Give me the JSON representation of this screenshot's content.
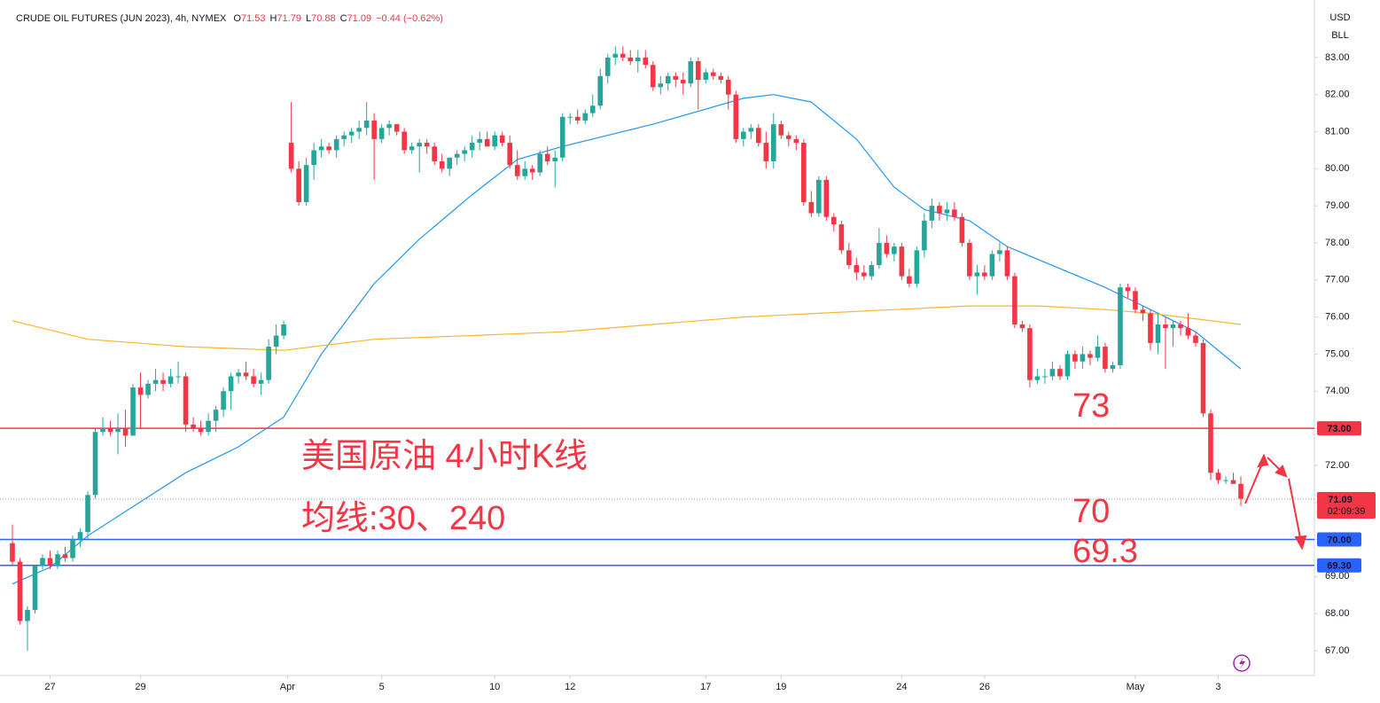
{
  "chart_data": {
    "type": "candlestick",
    "title": "CRUDE OIL FUTURES (JUN 2023), 4h, NYMEX",
    "ohlc": [
      [
        "O",
        "71.53"
      ],
      [
        "H",
        "71.79"
      ],
      [
        "L",
        "70.88"
      ],
      [
        "C",
        "71.09"
      ]
    ],
    "change": "−0.44 (−0.62%)",
    "currency": "USD",
    "unit": "BLL",
    "up_color": "#26a69a",
    "down_color": "#f23645",
    "grid": false,
    "ylim": [
      66.33,
      84.36
    ],
    "yticks": [
      {
        "value": 67,
        "label": "67.00"
      },
      {
        "value": 68,
        "label": "68.00"
      },
      {
        "value": 69,
        "label": "69.00"
      },
      {
        "value": 70,
        "label": "70.00"
      },
      {
        "value": 71,
        "label": "71.00"
      },
      {
        "value": 72,
        "label": "72.00"
      },
      {
        "value": 73,
        "label": "73.00"
      },
      {
        "value": 74,
        "label": "74.00"
      },
      {
        "value": 75,
        "label": "75.00"
      },
      {
        "value": 76,
        "label": "76.00"
      },
      {
        "value": 77,
        "label": "77.00"
      },
      {
        "value": 78,
        "label": "78.00"
      },
      {
        "value": 79,
        "label": "79.00"
      },
      {
        "value": 80,
        "label": "80.00"
      },
      {
        "value": 81,
        "label": "81.00"
      },
      {
        "value": 82,
        "label": "82.00"
      },
      {
        "value": 83,
        "label": "83.00"
      }
    ],
    "xticks": [
      {
        "value": 5,
        "label": "27"
      },
      {
        "value": 17,
        "label": "29"
      },
      {
        "value": 36.5,
        "label": "Apr"
      },
      {
        "value": 49,
        "label": "5"
      },
      {
        "value": 64,
        "label": "10"
      },
      {
        "value": 74,
        "label": "12"
      },
      {
        "value": 92,
        "label": "17"
      },
      {
        "value": 102,
        "label": "19"
      },
      {
        "value": 118,
        "label": "24"
      },
      {
        "value": 129,
        "label": "26"
      },
      {
        "value": 149,
        "label": "May"
      },
      {
        "value": 160,
        "label": "3"
      }
    ],
    "candles": [
      [
        69.9,
        70.4,
        69.3,
        69.4
      ],
      [
        69.4,
        69.5,
        67.7,
        67.8
      ],
      [
        67.8,
        68.2,
        67.0,
        68.1
      ],
      [
        68.1,
        69.3,
        68.0,
        69.3
      ],
      [
        69.3,
        69.6,
        69.2,
        69.5
      ],
      [
        69.5,
        69.7,
        69.2,
        69.3
      ],
      [
        69.3,
        69.7,
        69.2,
        69.6
      ],
      [
        69.6,
        69.8,
        69.4,
        69.5
      ],
      [
        69.5,
        70.1,
        69.4,
        70.0
      ],
      [
        70.0,
        70.3,
        69.8,
        70.2
      ],
      [
        70.2,
        71.3,
        70.0,
        71.2
      ],
      [
        71.2,
        73.0,
        71.1,
        72.9
      ],
      [
        72.9,
        73.3,
        72.8,
        73.0
      ],
      [
        73.0,
        73.2,
        72.8,
        72.9
      ],
      [
        72.9,
        73.4,
        72.3,
        73.0
      ],
      [
        73.0,
        73.5,
        72.5,
        72.8
      ],
      [
        72.8,
        74.2,
        72.8,
        74.1
      ],
      [
        74.1,
        74.5,
        73.0,
        73.9
      ],
      [
        73.9,
        74.3,
        73.8,
        74.2
      ],
      [
        74.2,
        74.6,
        74.0,
        74.3
      ],
      [
        74.3,
        74.5,
        74.0,
        74.2
      ],
      [
        74.2,
        74.6,
        74.1,
        74.4
      ],
      [
        74.4,
        74.8,
        74.2,
        74.4
      ],
      [
        74.4,
        74.5,
        72.9,
        73.1
      ],
      [
        73.1,
        73.3,
        72.9,
        73.0
      ],
      [
        73.0,
        73.2,
        72.8,
        72.9
      ],
      [
        72.9,
        73.4,
        72.8,
        73.2
      ],
      [
        73.2,
        73.6,
        72.9,
        73.5
      ],
      [
        73.5,
        74.1,
        73.3,
        74.0
      ],
      [
        74.0,
        74.5,
        73.5,
        74.4
      ],
      [
        74.4,
        74.6,
        74.2,
        74.5
      ],
      [
        74.5,
        74.8,
        74.3,
        74.4
      ],
      [
        74.4,
        74.6,
        74.1,
        74.2
      ],
      [
        74.2,
        74.5,
        73.9,
        74.3
      ],
      [
        74.3,
        75.4,
        74.2,
        75.2
      ],
      [
        75.2,
        75.8,
        75.0,
        75.5
      ],
      [
        75.5,
        75.9,
        75.4,
        75.8
      ],
      [
        80.7,
        81.8,
        79.9,
        80.0
      ],
      [
        80.0,
        80.2,
        79.0,
        79.1
      ],
      [
        79.1,
        80.3,
        79.0,
        80.1
      ],
      [
        80.1,
        80.7,
        79.7,
        80.5
      ],
      [
        80.5,
        80.8,
        80.3,
        80.6
      ],
      [
        80.6,
        80.7,
        80.4,
        80.5
      ],
      [
        80.5,
        80.9,
        80.3,
        80.8
      ],
      [
        80.8,
        81.0,
        80.6,
        80.9
      ],
      [
        80.9,
        81.1,
        80.7,
        81.0
      ],
      [
        81.0,
        81.3,
        80.8,
        81.1
      ],
      [
        81.1,
        81.8,
        80.9,
        81.3
      ],
      [
        81.3,
        81.5,
        79.7,
        80.8
      ],
      [
        80.8,
        81.2,
        80.7,
        81.1
      ],
      [
        81.1,
        81.3,
        80.9,
        81.2
      ],
      [
        81.2,
        81.2,
        80.9,
        81.0
      ],
      [
        81.0,
        81.1,
        80.4,
        80.5
      ],
      [
        80.5,
        80.7,
        80.4,
        80.6
      ],
      [
        80.6,
        80.8,
        79.9,
        80.7
      ],
      [
        80.7,
        80.8,
        80.4,
        80.6
      ],
      [
        80.6,
        80.7,
        80.1,
        80.2
      ],
      [
        80.2,
        80.4,
        79.9,
        80.0
      ],
      [
        80.0,
        80.3,
        79.8,
        80.3
      ],
      [
        80.3,
        80.5,
        80.1,
        80.4
      ],
      [
        80.4,
        80.6,
        80.2,
        80.5
      ],
      [
        80.5,
        80.9,
        80.3,
        80.7
      ],
      [
        80.7,
        81.0,
        80.5,
        80.8
      ],
      [
        80.8,
        81.0,
        80.6,
        80.6
      ],
      [
        80.6,
        81.0,
        80.5,
        80.9
      ],
      [
        80.9,
        81.0,
        80.6,
        80.7
      ],
      [
        80.7,
        80.9,
        80.0,
        80.1
      ],
      [
        80.1,
        80.5,
        79.7,
        79.8
      ],
      [
        79.8,
        80.2,
        79.7,
        80.0
      ],
      [
        80.0,
        80.1,
        79.7,
        79.9
      ],
      [
        79.9,
        80.5,
        79.8,
        80.4
      ],
      [
        80.4,
        80.6,
        80.1,
        80.2
      ],
      [
        80.2,
        80.5,
        79.5,
        80.3
      ],
      [
        80.3,
        81.5,
        80.2,
        81.4
      ],
      [
        81.4,
        81.5,
        81.2,
        81.4
      ],
      [
        81.4,
        81.6,
        81.2,
        81.3
      ],
      [
        81.3,
        81.6,
        81.2,
        81.5
      ],
      [
        81.5,
        82.0,
        81.4,
        81.7
      ],
      [
        81.7,
        82.7,
        81.6,
        82.5
      ],
      [
        82.5,
        83.1,
        82.3,
        83.0
      ],
      [
        83.0,
        83.3,
        82.8,
        83.1
      ],
      [
        83.1,
        83.3,
        82.9,
        83.0
      ],
      [
        83.0,
        83.2,
        82.8,
        82.9
      ],
      [
        82.9,
        83.2,
        82.6,
        83.0
      ],
      [
        83.0,
        83.2,
        82.7,
        82.8
      ],
      [
        82.8,
        82.9,
        82.1,
        82.2
      ],
      [
        82.2,
        82.5,
        82.0,
        82.3
      ],
      [
        82.3,
        82.6,
        82.1,
        82.5
      ],
      [
        82.5,
        82.6,
        82.2,
        82.4
      ],
      [
        82.4,
        82.6,
        82.0,
        82.3
      ],
      [
        82.3,
        83.0,
        82.2,
        82.9
      ],
      [
        82.9,
        83.0,
        81.6,
        82.4
      ],
      [
        82.4,
        82.7,
        82.3,
        82.6
      ],
      [
        82.6,
        82.7,
        82.4,
        82.5
      ],
      [
        82.5,
        82.6,
        82.3,
        82.4
      ],
      [
        82.4,
        82.5,
        81.6,
        82.0
      ],
      [
        82.0,
        82.1,
        80.7,
        80.8
      ],
      [
        80.8,
        81.1,
        80.6,
        81.0
      ],
      [
        81.0,
        81.2,
        80.8,
        81.1
      ],
      [
        81.1,
        81.2,
        80.6,
        80.7
      ],
      [
        80.7,
        81.0,
        80.0,
        80.2
      ],
      [
        80.2,
        81.5,
        80.0,
        81.2
      ],
      [
        81.2,
        81.3,
        80.8,
        80.9
      ],
      [
        80.9,
        81.0,
        80.6,
        80.8
      ],
      [
        80.8,
        80.9,
        80.5,
        80.7
      ],
      [
        80.7,
        80.8,
        79.0,
        79.1
      ],
      [
        79.1,
        79.4,
        78.7,
        78.8
      ],
      [
        78.8,
        79.8,
        78.7,
        79.7
      ],
      [
        79.7,
        79.8,
        78.6,
        78.7
      ],
      [
        78.7,
        78.8,
        78.3,
        78.5
      ],
      [
        78.5,
        78.6,
        77.7,
        77.8
      ],
      [
        77.8,
        78.0,
        77.3,
        77.4
      ],
      [
        77.4,
        77.6,
        77.0,
        77.2
      ],
      [
        77.2,
        77.4,
        77.0,
        77.1
      ],
      [
        77.1,
        77.5,
        77.0,
        77.4
      ],
      [
        77.4,
        78.4,
        77.3,
        78.0
      ],
      [
        78.0,
        78.2,
        77.6,
        77.7
      ],
      [
        77.7,
        78.0,
        77.5,
        77.9
      ],
      [
        77.9,
        78.0,
        77.0,
        77.1
      ],
      [
        77.1,
        77.3,
        76.8,
        76.9
      ],
      [
        76.9,
        77.9,
        76.8,
        77.8
      ],
      [
        77.8,
        78.8,
        77.6,
        78.6
      ],
      [
        78.6,
        79.2,
        78.4,
        79.0
      ],
      [
        79.0,
        79.1,
        78.6,
        78.8
      ],
      [
        78.8,
        79.1,
        78.6,
        78.9
      ],
      [
        78.9,
        79.1,
        78.6,
        78.7
      ],
      [
        78.7,
        78.8,
        77.9,
        78.0
      ],
      [
        78.0,
        78.1,
        77.0,
        77.1
      ],
      [
        77.1,
        77.4,
        76.6,
        77.2
      ],
      [
        77.2,
        77.4,
        77.0,
        77.1
      ],
      [
        77.1,
        77.8,
        77.0,
        77.7
      ],
      [
        77.7,
        78.0,
        77.5,
        77.8
      ],
      [
        77.8,
        77.9,
        77.0,
        77.1
      ],
      [
        77.1,
        77.2,
        75.7,
        75.8
      ],
      [
        75.8,
        75.9,
        75.6,
        75.7
      ],
      [
        75.7,
        75.8,
        74.1,
        74.3
      ],
      [
        74.3,
        74.6,
        74.2,
        74.4
      ],
      [
        74.4,
        74.6,
        74.2,
        74.4
      ],
      [
        74.4,
        74.8,
        74.3,
        74.6
      ],
      [
        74.6,
        74.7,
        74.3,
        74.4
      ],
      [
        74.4,
        75.1,
        74.3,
        75.0
      ],
      [
        75.0,
        75.1,
        74.6,
        74.8
      ],
      [
        74.8,
        75.2,
        74.6,
        75.0
      ],
      [
        75.0,
        75.1,
        74.7,
        74.9
      ],
      [
        74.9,
        75.5,
        74.8,
        75.2
      ],
      [
        75.2,
        75.3,
        74.5,
        74.6
      ],
      [
        74.6,
        74.8,
        74.5,
        74.7
      ],
      [
        74.7,
        76.9,
        74.6,
        76.8
      ],
      [
        76.8,
        76.9,
        76.5,
        76.7
      ],
      [
        76.7,
        76.8,
        76.1,
        76.2
      ],
      [
        76.2,
        76.3,
        75.9,
        76.1
      ],
      [
        76.1,
        76.2,
        75.1,
        75.3
      ],
      [
        75.3,
        76.1,
        75.0,
        75.8
      ],
      [
        75.8,
        76.0,
        74.6,
        75.7
      ],
      [
        75.7,
        75.9,
        75.2,
        75.8
      ],
      [
        75.8,
        75.9,
        75.5,
        75.7
      ],
      [
        75.7,
        76.1,
        75.4,
        75.5
      ],
      [
        75.5,
        75.6,
        75.2,
        75.3
      ],
      [
        75.3,
        75.4,
        73.3,
        73.4
      ],
      [
        73.4,
        73.5,
        71.6,
        71.8
      ],
      [
        71.8,
        71.9,
        71.5,
        71.6
      ],
      [
        71.6,
        71.7,
        71.5,
        71.6
      ],
      [
        71.6,
        71.8,
        71.5,
        71.5
      ],
      [
        71.5,
        71.7,
        70.9,
        71.1
      ]
    ],
    "ma_lines": [
      {
        "color": "#2196f3",
        "x": [
          0,
          5,
          10,
          23,
          30,
          36,
          41,
          48,
          54,
          61,
          67,
          73,
          85,
          97,
          101,
          106,
          112,
          117,
          121,
          127,
          132,
          145,
          151,
          157,
          163
        ],
        "values": [
          68.8,
          69.25,
          70.1,
          71.8,
          72.5,
          73.3,
          75.0,
          76.9,
          78.1,
          79.3,
          80.25,
          80.6,
          81.2,
          81.9,
          82.0,
          81.8,
          80.8,
          79.5,
          78.9,
          78.6,
          77.9,
          76.8,
          76.2,
          75.6,
          74.6
        ]
      },
      {
        "color": "#f5b731",
        "x": [
          0,
          10,
          23,
          36,
          48,
          61,
          73,
          85,
          97,
          107,
          117,
          127,
          136,
          145,
          151,
          163
        ],
        "values": [
          75.9,
          75.4,
          75.2,
          75.1,
          75.4,
          75.5,
          75.6,
          75.8,
          76.0,
          76.1,
          76.2,
          76.3,
          76.3,
          76.2,
          76.1,
          75.8
        ]
      }
    ],
    "hlines": [
      {
        "value": 73,
        "label": "73.00",
        "color": "#f23645"
      },
      {
        "value": 70,
        "label": "70.00",
        "color": "#2962ff"
      },
      {
        "value": 69.3,
        "label": "69.30",
        "color": "#2962ff"
      }
    ],
    "last_price": {
      "value": 71.09,
      "countdown": "02:09:39",
      "color": "#f23645"
    },
    "annotations": [
      "美国原油 4小时K线",
      "均线:30、240",
      "73",
      "70",
      "69.3"
    ]
  }
}
